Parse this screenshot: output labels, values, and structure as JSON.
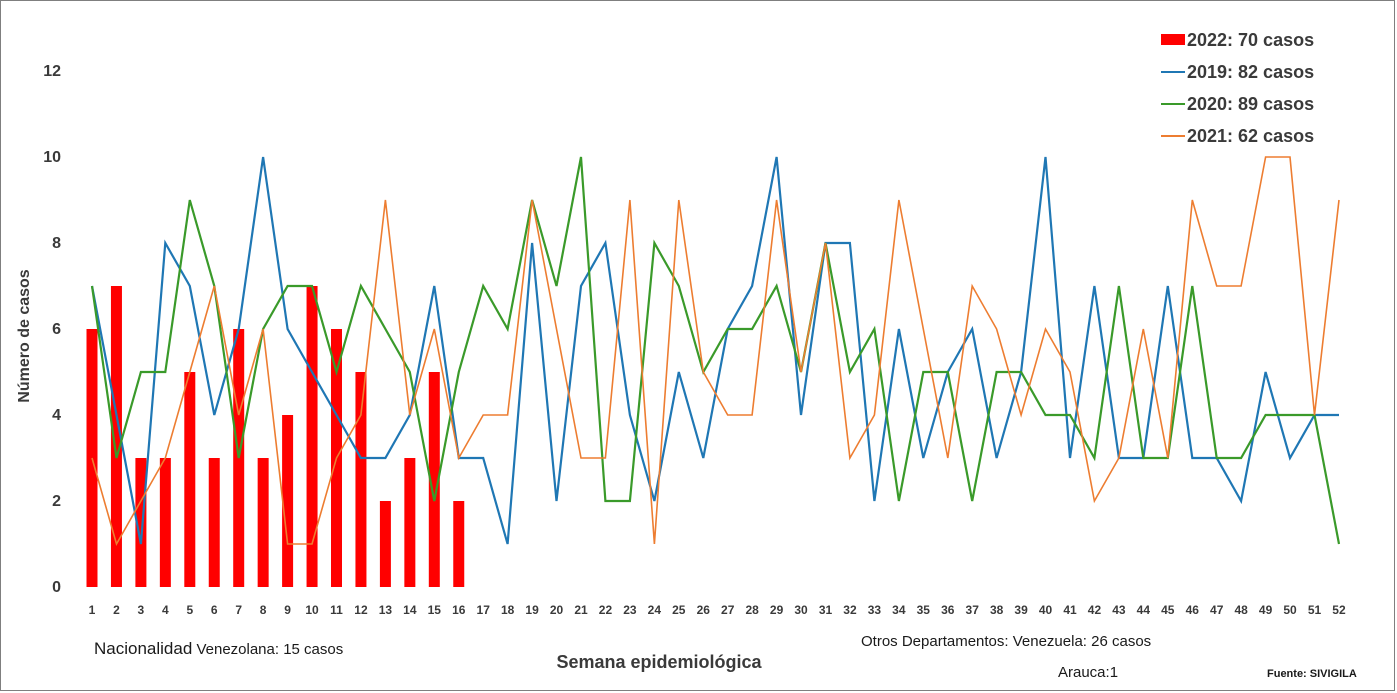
{
  "chart_data": {
    "type": "bar",
    "xlabel": "Semana epidemiológica",
    "ylabel": "Número de casos",
    "ylim": [
      0,
      12
    ],
    "yticks": [
      0,
      2,
      4,
      6,
      8,
      10,
      12
    ],
    "x": [
      1,
      2,
      3,
      4,
      5,
      6,
      7,
      8,
      9,
      10,
      11,
      12,
      13,
      14,
      15,
      16,
      17,
      18,
      19,
      20,
      21,
      22,
      23,
      24,
      25,
      26,
      27,
      28,
      29,
      30,
      31,
      32,
      33,
      34,
      35,
      36,
      37,
      38,
      39,
      40,
      41,
      42,
      43,
      44,
      45,
      46,
      47,
      48,
      49,
      50,
      51,
      52
    ],
    "legend_position": "top-right",
    "bars": {
      "name": "2022: 70 casos",
      "color": "#ff0000",
      "values": [
        6,
        7,
        3,
        3,
        5,
        3,
        6,
        3,
        4,
        7,
        6,
        5,
        2,
        3,
        5,
        2
      ]
    },
    "series": [
      {
        "name": "2019: 82 casos",
        "type": "line",
        "color": "#1f77b4",
        "values": [
          7,
          4,
          1,
          8,
          7,
          4,
          6,
          10,
          6,
          5,
          4,
          3,
          3,
          4,
          7,
          3,
          3,
          1,
          8,
          2,
          7,
          8,
          4,
          2,
          5,
          3,
          6,
          7,
          10,
          4,
          8,
          8,
          2,
          6,
          3,
          5,
          6,
          3,
          5,
          10,
          3,
          7,
          3,
          3,
          7,
          3,
          3,
          2,
          5,
          3,
          4,
          4
        ]
      },
      {
        "name": "2020:  89 casos",
        "type": "line",
        "color": "#3a9a2a",
        "values": [
          7,
          3,
          5,
          5,
          9,
          7,
          3,
          6,
          7,
          7,
          5,
          7,
          6,
          5,
          2,
          5,
          7,
          6,
          9,
          7,
          10,
          2,
          2,
          8,
          7,
          5,
          6,
          6,
          7,
          5,
          8,
          5,
          6,
          2,
          5,
          5,
          2,
          5,
          5,
          4,
          4,
          3,
          7,
          3,
          3,
          7,
          3,
          3,
          4,
          4,
          4,
          1
        ]
      },
      {
        "name": "2021: 62 casos",
        "type": "line",
        "color": "#ed7d31",
        "values": [
          3,
          1,
          2,
          3,
          5,
          7,
          4,
          6,
          1,
          1,
          3,
          4,
          9,
          4,
          6,
          3,
          4,
          4,
          9,
          6,
          3,
          3,
          9,
          1,
          9,
          5,
          4,
          4,
          9,
          5,
          8,
          3,
          4,
          9,
          6,
          3,
          7,
          6,
          4,
          6,
          5,
          2,
          3,
          6,
          3,
          9,
          7,
          7,
          10,
          10,
          4,
          9
        ]
      }
    ]
  },
  "notes": {
    "left_big": "Nacionalidad",
    "left_small": " Venezolana: 15 casos",
    "right": "Otros Departamentos: Venezuela: 26 casos",
    "arauca": "Arauca:1",
    "source": "Fuente: SIVIGILA"
  }
}
